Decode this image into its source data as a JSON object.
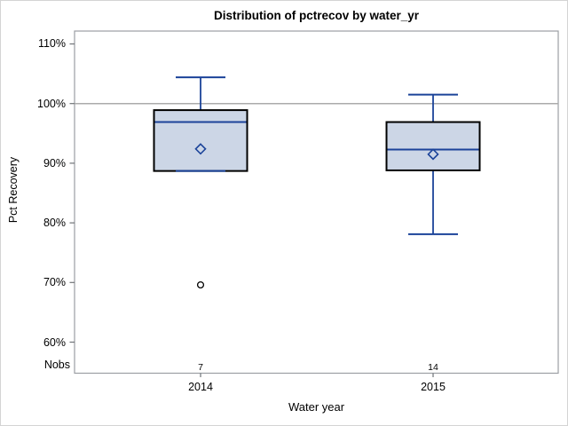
{
  "title": "Distribution of pctrecov by water_yr",
  "y_axis": {
    "label": "Pct Recovery",
    "ticks": [
      "110%",
      "100%",
      "90%",
      "80%",
      "70%",
      "60%"
    ]
  },
  "x_axis": {
    "label": "Water year",
    "categories": [
      "2014",
      "2015"
    ]
  },
  "nobs": {
    "label": "Nobs",
    "values": [
      "7",
      "14"
    ]
  },
  "colors": {
    "box_fill": "#ccd6e6",
    "box_border": "#000000",
    "line": "#1b4399",
    "frame": "#9b9ea3",
    "refline": "#ababab",
    "tick": "#6f7377",
    "outlier": "#000000",
    "outer_border": "#d4d4d4"
  },
  "chart_data": {
    "type": "boxplot",
    "title": "Distribution of pctrecov by water_yr",
    "xlabel": "Water year",
    "ylabel": "Pct Recovery",
    "ylim": [
      57,
      112
    ],
    "yticks": [
      110,
      100,
      90,
      80,
      70,
      60
    ],
    "ytick_labels": [
      "110%",
      "100%",
      "90%",
      "80%",
      "70%",
      "60%"
    ],
    "refline": 100,
    "grid": false,
    "legend": "none",
    "categories": [
      "2014",
      "2015"
    ],
    "groups": [
      {
        "category": "2014",
        "nobs": 7,
        "whisker_low": 88.7,
        "q1": 88.7,
        "median": 96.9,
        "q3": 98.9,
        "whisker_high": 104.4,
        "mean": 92.4,
        "outliers": [
          69.6
        ]
      },
      {
        "category": "2015",
        "nobs": 14,
        "whisker_low": 78.1,
        "q1": 88.8,
        "median": 92.3,
        "q3": 96.9,
        "whisker_high": 101.5,
        "mean": 91.5,
        "outliers": []
      }
    ]
  }
}
